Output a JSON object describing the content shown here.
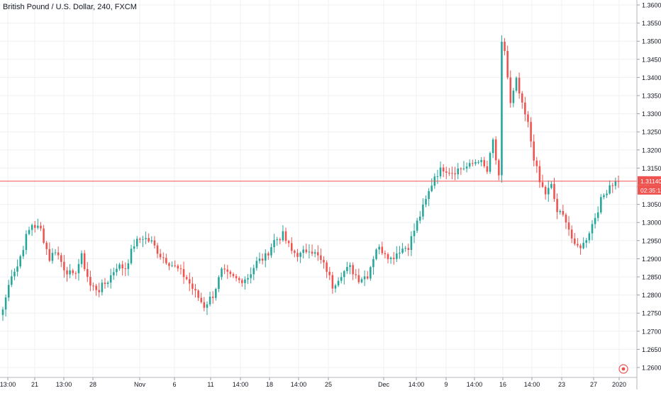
{
  "header": {
    "symbol_title": "British Pound / U.S. Dollar, 240, FXCM"
  },
  "colors": {
    "up": "#26a69a",
    "down": "#ef5350",
    "grid": "#eef0f3",
    "axis_text": "#131722",
    "last_price_line": "#ef5350",
    "last_price_label_bg": "#ef5350",
    "background": "#ffffff"
  },
  "price_axis": {
    "tick_labels": [
      "1.36000",
      "1.35500",
      "1.35000",
      "1.34500",
      "1.34000",
      "1.33500",
      "1.33000",
      "1.32500",
      "1.32000",
      "1.31500",
      "1.31000",
      "1.30500",
      "1.30000",
      "1.29500",
      "1.29000",
      "1.28500",
      "1.28000",
      "1.27500",
      "1.27000",
      "1.26500",
      "1.26000"
    ],
    "last_price_label": "1.31140",
    "countdown_label": "02:35:11"
  },
  "time_axis": {
    "tick_labels": [
      "13:00",
      "21",
      "13:00",
      "28",
      "Nov",
      "6",
      "11",
      "14:00",
      "18",
      "14:00",
      "25",
      "Dec",
      "14:00",
      "9",
      "14:00",
      "16",
      "14:00",
      "23",
      "27",
      "2020"
    ]
  },
  "chart_data": {
    "type": "candlestick",
    "title": "British Pound / U.S. Dollar, 240, FXCM",
    "timeframe": "240",
    "ylim": [
      1.2575,
      1.3615
    ],
    "last_price": 1.3114,
    "y_ticks": [
      1.36,
      1.355,
      1.35,
      1.345,
      1.34,
      1.335,
      1.33,
      1.325,
      1.32,
      1.315,
      1.31,
      1.305,
      1.3,
      1.295,
      1.29,
      1.285,
      1.28,
      1.275,
      1.27,
      1.265,
      1.26
    ],
    "x_ticks": [
      "13:00",
      "21",
      "13:00",
      "28",
      "Nov",
      "6",
      "11",
      "14:00",
      "18",
      "14:00",
      "25",
      "Dec",
      "14:00",
      "9",
      "14:00",
      "16",
      "14:00",
      "23",
      "27",
      "2020"
    ],
    "anchors": [
      [
        0,
        1.276
      ],
      [
        3,
        1.286
      ],
      [
        5,
        1.288
      ],
      [
        8,
        1.296
      ],
      [
        10,
        1.2995
      ],
      [
        13,
        1.298
      ],
      [
        16,
        1.29
      ],
      [
        18,
        1.2925
      ],
      [
        21,
        1.2875
      ],
      [
        24,
        1.285
      ],
      [
        27,
        1.2905
      ],
      [
        30,
        1.2825
      ],
      [
        33,
        1.2815
      ],
      [
        36,
        1.284
      ],
      [
        39,
        1.288
      ],
      [
        42,
        1.2875
      ],
      [
        45,
        1.294
      ],
      [
        48,
        1.296
      ],
      [
        51,
        1.2945
      ],
      [
        54,
        1.291
      ],
      [
        57,
        1.289
      ],
      [
        60,
        1.287
      ],
      [
        63,
        1.2845
      ],
      [
        66,
        1.2805
      ],
      [
        69,
        1.277
      ],
      [
        72,
        1.28
      ],
      [
        75,
        1.2865
      ],
      [
        78,
        1.285
      ],
      [
        81,
        1.284
      ],
      [
        84,
        1.285
      ],
      [
        87,
        1.289
      ],
      [
        90,
        1.2905
      ],
      [
        93,
        1.295
      ],
      [
        96,
        1.2965
      ],
      [
        99,
        1.292
      ],
      [
        102,
        1.291
      ],
      [
        105,
        1.293
      ],
      [
        108,
        1.2905
      ],
      [
        111,
        1.287
      ],
      [
        113,
        1.2825
      ],
      [
        116,
        1.286
      ],
      [
        119,
        1.2875
      ],
      [
        122,
        1.2845
      ],
      [
        125,
        1.2855
      ],
      [
        128,
        1.293
      ],
      [
        131,
        1.292
      ],
      [
        133,
        1.29
      ],
      [
        136,
        1.2925
      ],
      [
        139,
        1.2935
      ],
      [
        142,
        1.3
      ],
      [
        145,
        1.306
      ],
      [
        148,
        1.313
      ],
      [
        151,
        1.315
      ],
      [
        154,
        1.314
      ],
      [
        157,
        1.315
      ],
      [
        160,
        1.3155
      ],
      [
        163,
        1.3175
      ],
      [
        166,
        1.314
      ],
      [
        168,
        1.3225
      ],
      [
        170,
        1.312
      ],
      [
        171,
        1.349
      ],
      [
        172,
        1.3475
      ],
      [
        174,
        1.3325
      ],
      [
        176,
        1.339
      ],
      [
        178,
        1.332
      ],
      [
        180,
        1.327
      ],
      [
        182,
        1.318
      ],
      [
        184,
        1.311
      ],
      [
        186,
        1.308
      ],
      [
        188,
        1.31
      ],
      [
        190,
        1.303
      ],
      [
        193,
        1.301
      ],
      [
        196,
        1.293
      ],
      [
        199,
        1.294
      ],
      [
        202,
        1.2995
      ],
      [
        205,
        1.306
      ],
      [
        208,
        1.3105
      ],
      [
        211,
        1.3114
      ]
    ]
  }
}
